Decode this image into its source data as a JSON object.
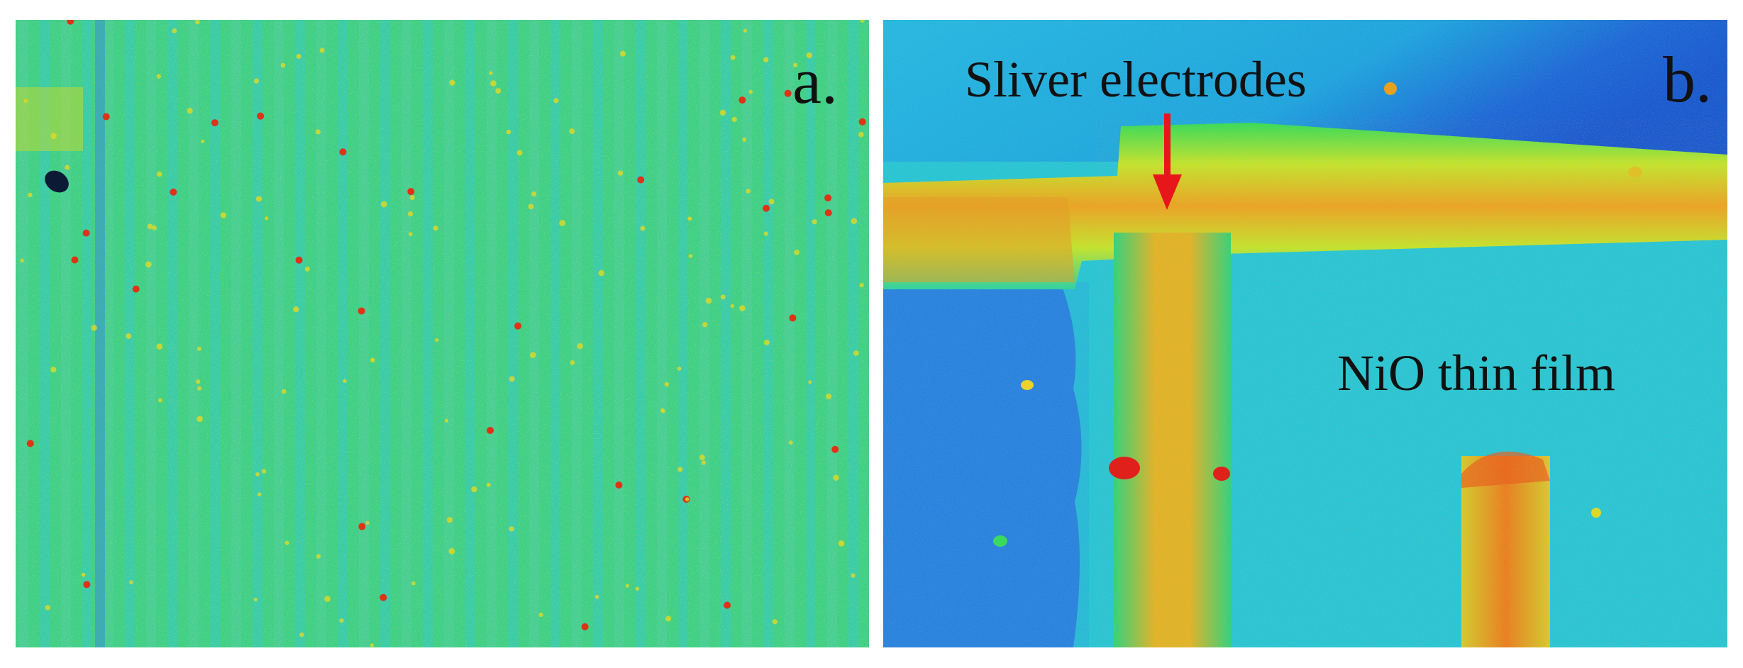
{
  "panels": [
    {
      "label": "a.",
      "annotations": []
    },
    {
      "label": "b.",
      "annotations": [
        "Sliver electrodes",
        "NiO thin film"
      ]
    }
  ],
  "colors": {
    "arrow": "#e8161a",
    "low": "#1a5fd6",
    "mid_low": "#18c4e6",
    "mid": "#2fd957",
    "mid_high": "#d8e020",
    "high": "#e62a10"
  }
}
